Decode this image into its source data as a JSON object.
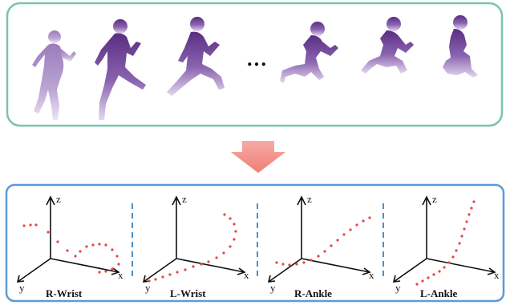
{
  "top_panel": {
    "ellipsis": "…",
    "frames": [
      {
        "name": "frame-1"
      },
      {
        "name": "frame-2"
      },
      {
        "name": "frame-3"
      },
      {
        "name": "frame-4"
      },
      {
        "name": "frame-5"
      },
      {
        "name": "frame-6"
      }
    ]
  },
  "arrow": {
    "icon": "down-arrow-icon",
    "color": "#f39089"
  },
  "bottom_panel": {
    "plots": [
      {
        "label": "R-Wrist",
        "axes": {
          "x": "x",
          "y": "y",
          "z": "z"
        }
      },
      {
        "label": "L-Wrist",
        "axes": {
          "x": "x",
          "y": "y",
          "z": "z"
        }
      },
      {
        "label": "R-Ankle",
        "axes": {
          "x": "x",
          "y": "y",
          "z": "z"
        }
      },
      {
        "label": "L-Ankle",
        "axes": {
          "x": "x",
          "y": "y",
          "z": "z"
        }
      }
    ]
  },
  "colors": {
    "top_border": "#7cc3ad",
    "bottom_border": "#5b9bd8",
    "divider": "#4a90c9",
    "trajectory_dot": "#e84545",
    "silhouette_dark": "#5a2e82",
    "silhouette_light": "#d8c8e8"
  }
}
